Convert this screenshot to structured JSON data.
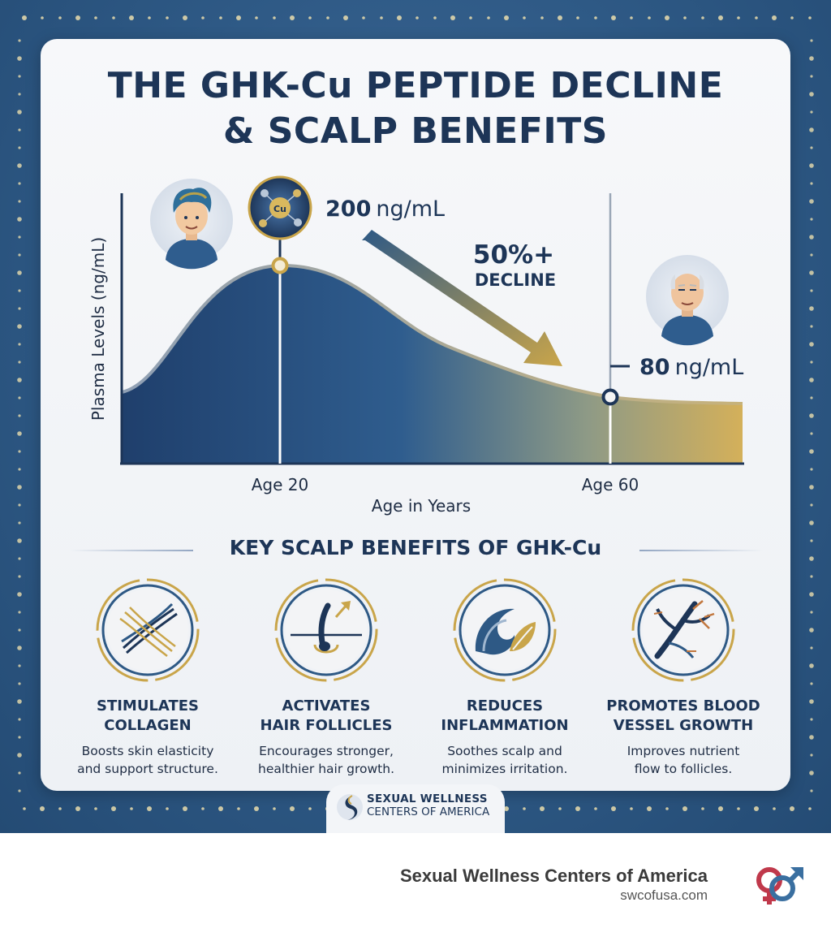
{
  "title": {
    "line1": "THE GHK-Cu PEPTIDE DECLINE",
    "line2": "& SCALP BENEFITS"
  },
  "chart": {
    "ylabel": "Plasma Levels (ng/mL)",
    "xlabel": "Age in Years",
    "x_tick_20": "Age 20",
    "x_tick_60": "Age 60",
    "peak_value": "200",
    "peak_unit": "ng/mL",
    "low_value": "80",
    "low_unit": "ng/mL",
    "decline_pct": "50%+",
    "decline_word": "DECLINE",
    "molecule_label": "Cu"
  },
  "chart_data": {
    "type": "area",
    "xlabel": "Age in Years",
    "ylabel": "Plasma Levels (ng/mL)",
    "points": [
      {
        "x": "Age 20",
        "y": 200
      },
      {
        "x": "Age 60",
        "y": 80
      }
    ],
    "annotation": "50%+ DECLINE"
  },
  "benefits": {
    "heading": "KEY SCALP BENEFITS OF GHK-Cu",
    "items": [
      {
        "title1": "STIMULATES",
        "title2": "COLLAGEN",
        "desc1": "Boosts skin elasticity",
        "desc2": "and support structure.",
        "icon": "collagen-fibers-icon"
      },
      {
        "title1": "ACTIVATES",
        "title2": "HAIR FOLLICLES",
        "desc1": "Encourages stronger,",
        "desc2": "healthier hair growth.",
        "icon": "hair-follicle-icon"
      },
      {
        "title1": "REDUCES",
        "title2": "INFLAMMATION",
        "desc1": "Soothes scalp and",
        "desc2": "minimizes irritation.",
        "icon": "wave-leaf-icon"
      },
      {
        "title1": "PROMOTES BLOOD",
        "title2": "VESSEL GROWTH",
        "desc1": "Improves nutrient",
        "desc2": "flow to follicles.",
        "icon": "blood-vessel-icon"
      }
    ]
  },
  "logo": {
    "line1": "SEXUAL WELLNESS",
    "line2": "CENTERS OF AMERICA"
  },
  "footer": {
    "name": "Sexual Wellness Centers of America",
    "url": "swcofusa.com"
  },
  "colors": {
    "navy": "#1d3557",
    "gold": "#c9a54a",
    "blue_bg": "#2e5985"
  }
}
